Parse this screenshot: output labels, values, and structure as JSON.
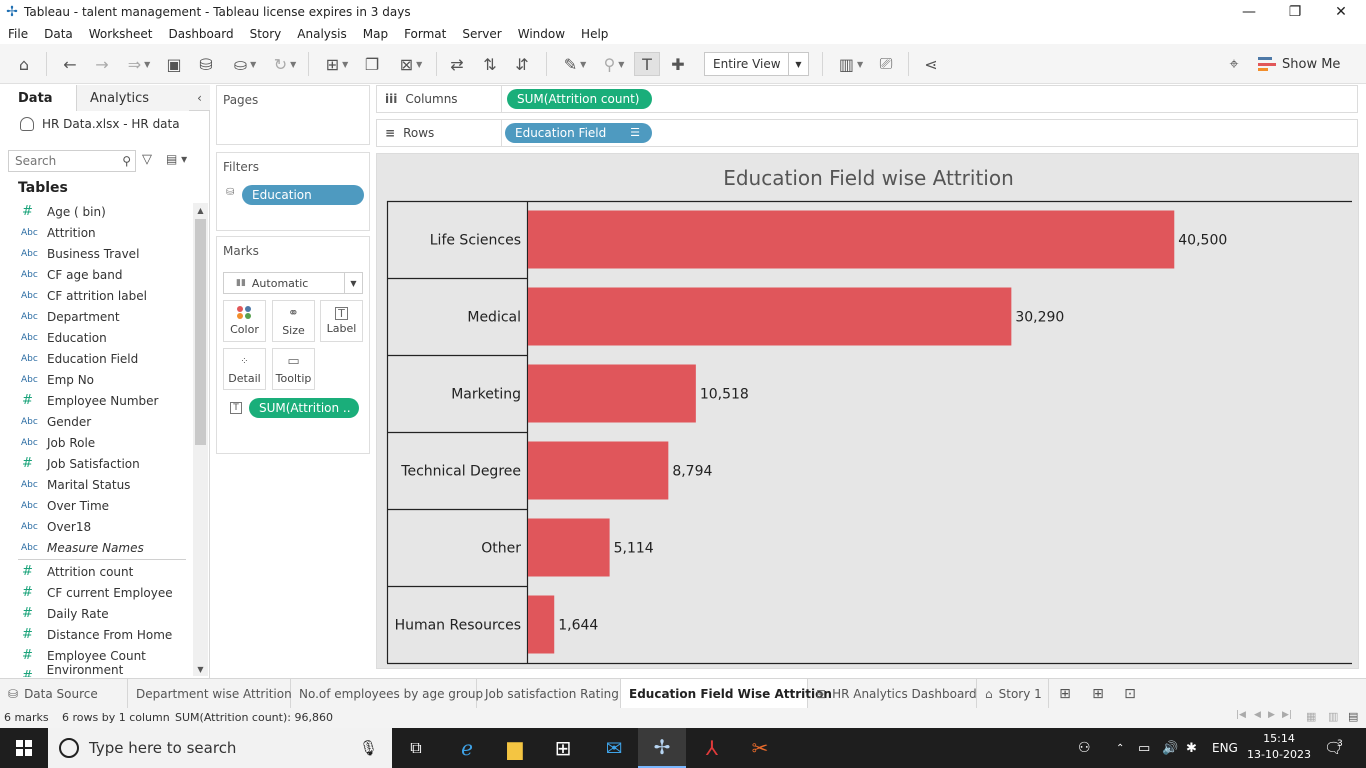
{
  "window": {
    "title": "Tableau - talent management - Tableau license expires in 3 days",
    "controls": [
      "—",
      "❐",
      "✕"
    ]
  },
  "menu": [
    "File",
    "Data",
    "Worksheet",
    "Dashboard",
    "Story",
    "Analysis",
    "Map",
    "Format",
    "Server",
    "Window",
    "Help"
  ],
  "toolbar": {
    "view_mode": "Entire View",
    "show_me": "Show Me"
  },
  "data_pane": {
    "tabs": [
      "Data",
      "Analytics"
    ],
    "datasource": "HR Data.xlsx - HR data",
    "search_placeholder": "Search",
    "tables_heading": "Tables",
    "dimensions": [
      {
        "type": "#",
        "name": "Age ( bin)"
      },
      {
        "type": "Abc",
        "name": "Attrition"
      },
      {
        "type": "Abc",
        "name": "Business Travel"
      },
      {
        "type": "Abc",
        "name": "CF age band"
      },
      {
        "type": "Abc",
        "name": "CF attrition label"
      },
      {
        "type": "Abc",
        "name": "Department"
      },
      {
        "type": "Abc",
        "name": "Education"
      },
      {
        "type": "Abc",
        "name": "Education Field"
      },
      {
        "type": "Abc",
        "name": "Emp No"
      },
      {
        "type": "#",
        "name": "Employee Number"
      },
      {
        "type": "Abc",
        "name": "Gender"
      },
      {
        "type": "Abc",
        "name": "Job Role"
      },
      {
        "type": "#",
        "name": "Job Satisfaction"
      },
      {
        "type": "Abc",
        "name": "Marital Status"
      },
      {
        "type": "Abc",
        "name": "Over Time"
      },
      {
        "type": "Abc",
        "name": "Over18"
      },
      {
        "type": "Abc",
        "name": "Measure Names"
      }
    ],
    "measures": [
      {
        "type": "#",
        "name": "Attrition count"
      },
      {
        "type": "#",
        "name": "CF current Employee"
      },
      {
        "type": "#",
        "name": "Daily Rate"
      },
      {
        "type": "#",
        "name": "Distance From Home"
      },
      {
        "type": "#",
        "name": "Employee Count"
      },
      {
        "type": "#",
        "name": "Environment Satisfacti..."
      }
    ]
  },
  "cards": {
    "pages": "Pages",
    "filters": "Filters",
    "filter_pill": "Education",
    "marks": "Marks",
    "mark_type": "Automatic",
    "mark_buttons": [
      "Color",
      "Size",
      "Label",
      "Detail",
      "Tooltip"
    ],
    "mark_pill": "SUM(Attrition .."
  },
  "shelves": {
    "columns_label": "Columns",
    "columns_pill": "SUM(Attrition count)",
    "rows_label": "Rows",
    "rows_pill": "Education Field"
  },
  "chart_data": {
    "type": "bar",
    "orientation": "horizontal",
    "title": "Education Field wise Attrition",
    "categories": [
      "Life Sciences",
      "Medical",
      "Marketing",
      "Technical Degree",
      "Other",
      "Human Resources"
    ],
    "values": [
      40500,
      30290,
      10518,
      8794,
      5114,
      1644
    ],
    "value_labels": [
      "40,500",
      "30,290",
      "10,518",
      "8,794",
      "5,114",
      "1,644"
    ],
    "bar_color": "#e0565b",
    "xlim": [
      0,
      51700
    ]
  },
  "sheet_tabs": [
    {
      "label": "Data Source",
      "icon": "db-icon"
    },
    {
      "label": "Department wise Attrition"
    },
    {
      "label": "No.of employees by age group"
    },
    {
      "label": "Job satisfaction Rating"
    },
    {
      "label": "Education Field Wise Attrition",
      "active": true
    },
    {
      "label": "HR Analytics Dashboard",
      "icon": "dashboard-icon"
    },
    {
      "label": "Story 1",
      "icon": "story-icon"
    }
  ],
  "status": {
    "marks": "6 marks",
    "rows_cols": "6 rows by 1 column",
    "sum": "SUM(Attrition count): 96,860"
  },
  "taskbar": {
    "search_placeholder": "Type here to search",
    "language": "ENG",
    "time": "15:14",
    "date": "13-10-2023",
    "notifications": "3"
  }
}
